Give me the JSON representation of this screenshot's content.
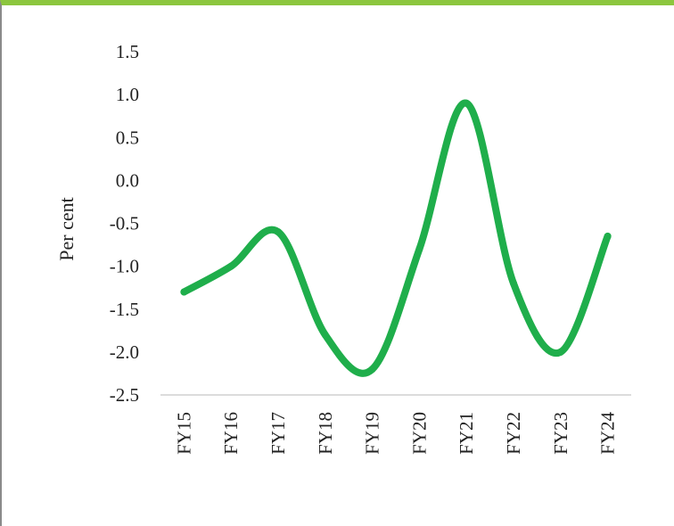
{
  "chart_data": {
    "type": "line",
    "title": "",
    "xlabel": "",
    "ylabel": "Per cent",
    "categories": [
      "FY15",
      "FY16",
      "FY17",
      "FY18",
      "FY19",
      "FY20",
      "FY21",
      "FY22",
      "FY23",
      "FY24"
    ],
    "series": [
      {
        "values": [
          -1.3,
          -1.0,
          -0.6,
          -1.8,
          -2.2,
          -0.8,
          0.9,
          -1.2,
          -2.0,
          -0.65
        ]
      }
    ],
    "ylim": [
      -2.5,
      1.5
    ],
    "yticks": [
      "1.5",
      "1.0",
      "0.5",
      "0.0",
      "-0.5",
      "-1.0",
      "-1.5",
      "-2.0",
      "-2.5"
    ],
    "ytick_values": [
      1.5,
      1.0,
      0.5,
      0.0,
      -0.5,
      -1.0,
      -1.5,
      -2.0,
      -2.5
    ],
    "grid": false,
    "legend": "none",
    "line_color": "#1fae4b",
    "frame_top_color": "#8cc63e",
    "frame_left_color": "#8a8a8a",
    "axis_color": "#d0d0d0"
  }
}
